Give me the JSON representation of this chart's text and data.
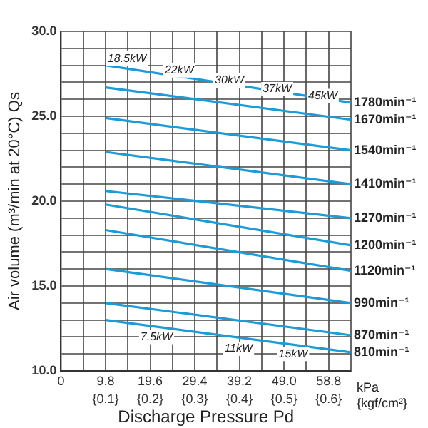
{
  "chart_data": {
    "type": "line",
    "xlabel": "Discharge Pressure Pd",
    "ylabel": "Air volume (m³/min at 20°C) Qs",
    "xlim": [
      0,
      63.7
    ],
    "ylim": [
      10,
      30
    ],
    "xticks": [
      0,
      {
        "value": 4.9,
        "label": null
      },
      9.8,
      {
        "value": 14.7,
        "label": null
      },
      19.6,
      {
        "value": 24.5,
        "label": null
      },
      29.4,
      {
        "value": 34.3,
        "label": null
      },
      39.2,
      {
        "value": 44.1,
        "label": null
      },
      {
        "value": 49.0,
        "label": "49.0"
      },
      {
        "value": 53.9,
        "label": null
      },
      58.8,
      {
        "value": 63.7,
        "label": null
      }
    ],
    "x2lim": [
      0,
      0.65
    ],
    "x2ticks": [
      {
        "value": 0.1,
        "label": "{0.1}"
      },
      {
        "value": 0.2,
        "label": "{0.2}"
      },
      {
        "value": 0.3,
        "label": "{0.3}"
      },
      {
        "value": 0.4,
        "label": "{0.4}"
      },
      {
        "value": 0.5,
        "label": "{0.5}"
      },
      {
        "value": 0.6,
        "label": "{0.6}"
      }
    ],
    "yticks": [
      {
        "value": 10,
        "label": "10.0"
      },
      {
        "value": 11,
        "label": null
      },
      {
        "value": 12,
        "label": null
      },
      {
        "value": 13,
        "label": null
      },
      {
        "value": 14,
        "label": null
      },
      {
        "value": 15,
        "label": "15.0"
      },
      {
        "value": 16,
        "label": null
      },
      {
        "value": 17,
        "label": null
      },
      {
        "value": 18,
        "label": null
      },
      {
        "value": 19,
        "label": null
      },
      {
        "value": 20,
        "label": "20.0"
      },
      {
        "value": 21,
        "label": null
      },
      {
        "value": 22,
        "label": null
      },
      {
        "value": 23,
        "label": null
      },
      {
        "value": 24,
        "label": null
      },
      {
        "value": 25,
        "label": "25.0"
      },
      {
        "value": 26,
        "label": null
      },
      {
        "value": 27,
        "label": null
      },
      {
        "value": 28,
        "label": null
      },
      {
        "value": 29,
        "label": null
      },
      {
        "value": 30,
        "label": "30.0"
      }
    ],
    "grid": true,
    "legend": false,
    "marker": "none",
    "line_style": "solid",
    "x": [
      9.8,
      63.7
    ],
    "series": [
      {
        "name": "1780min⁻¹",
        "color": "#1e9bd7",
        "values": [
          28.0,
          25.8
        ]
      },
      {
        "name": "1670min⁻¹",
        "color": "#1e9bd7",
        "values": [
          26.7,
          24.8
        ]
      },
      {
        "name": "1540min⁻¹",
        "color": "#1e9bd7",
        "values": [
          24.9,
          23.0
        ]
      },
      {
        "name": "1410min⁻¹",
        "color": "#1e9bd7",
        "values": [
          22.9,
          21.0
        ]
      },
      {
        "name": "1270min⁻¹",
        "color": "#1e9bd7",
        "values": [
          20.6,
          19.0
        ]
      },
      {
        "name": "1200min⁻¹",
        "color": "#1e9bd7",
        "values": [
          19.8,
          17.4
        ]
      },
      {
        "name": "1120min⁻¹",
        "color": "#1e9bd7",
        "values": [
          18.3,
          15.9
        ]
      },
      {
        "name": "990min⁻¹",
        "color": "#1e9bd7",
        "values": [
          16.0,
          14.0
        ]
      },
      {
        "name": "870min⁻¹",
        "color": "#1e9bd7",
        "values": [
          14.0,
          12.1
        ]
      },
      {
        "name": "810min⁻¹",
        "color": "#1e9bd7",
        "values": [
          13.0,
          11.1
        ]
      }
    ],
    "annotations": [
      {
        "text": "18.5kW",
        "x": 14.5,
        "y": 28.4
      },
      {
        "text": "22kW",
        "x": 26,
        "y": 27.7
      },
      {
        "text": "30kW",
        "x": 37,
        "y": 27.1
      },
      {
        "text": "37kW",
        "x": 47.5,
        "y": 26.6
      },
      {
        "text": "45kW",
        "x": 57.5,
        "y": 26.2
      },
      {
        "text": "7.5kW",
        "x": 21,
        "y": 12.0
      },
      {
        "text": "11kW",
        "x": 39,
        "y": 11.3
      },
      {
        "text": "15kW",
        "x": 51,
        "y": 11.0
      },
      "kPa",
      "{kgf/cm²}"
    ]
  }
}
